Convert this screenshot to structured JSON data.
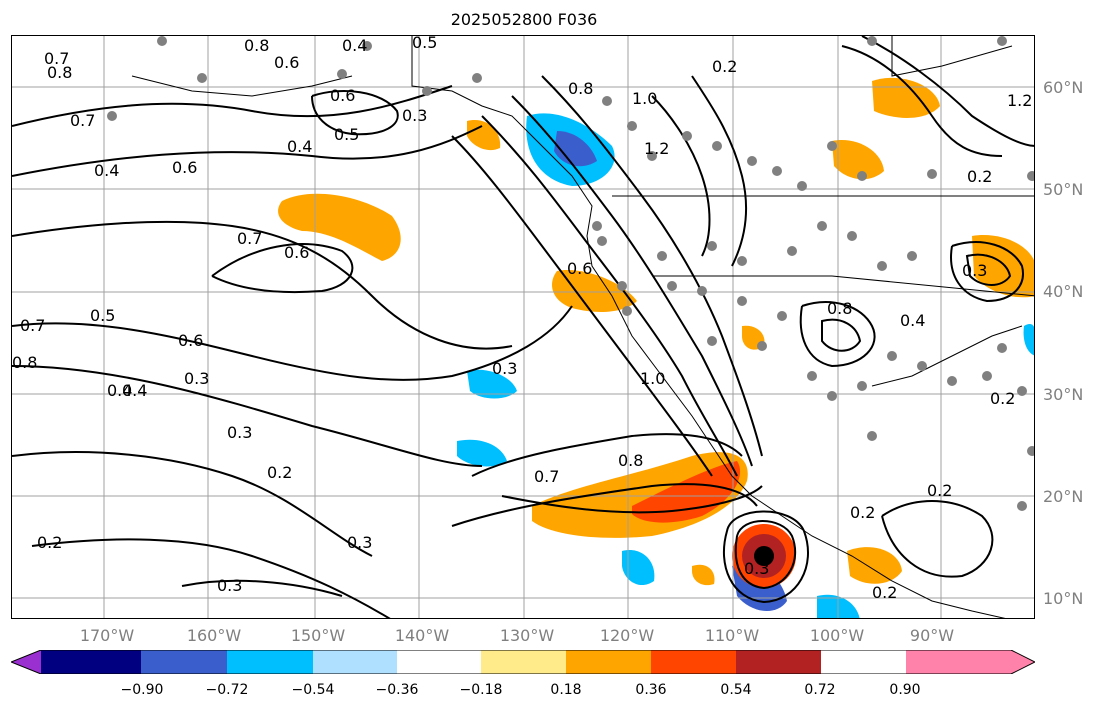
{
  "title": "2025052800 F036",
  "lat_labels": [
    "60°N",
    "50°N",
    "40°N",
    "30°N",
    "20°N",
    "10°N"
  ],
  "lon_labels": [
    "170°W",
    "160°W",
    "150°W",
    "140°W",
    "130°W",
    "120°W",
    "110°W",
    "100°W",
    "90°W"
  ],
  "colorbar": {
    "ticks": [
      "−0.90",
      "−0.72",
      "−0.54",
      "−0.36",
      "−0.18",
      "0.18",
      "0.36",
      "0.54",
      "0.72",
      "0.90"
    ],
    "colors": [
      "#9b30d0",
      "#000080",
      "#3a5fcd",
      "#00bfff",
      "#b0e0ff",
      "#ffffff",
      "#ffeb8a",
      "#ffa500",
      "#ff4500",
      "#b22222",
      "#ff82ab"
    ]
  },
  "contour_labels": [
    "0.7",
    "0.8",
    "0.8",
    "0.4",
    "0.6",
    "0.6",
    "0.5",
    "0.4",
    "0.5",
    "0.7",
    "0.6",
    "0.4",
    "0.3",
    "0.4",
    "0.7",
    "0.6",
    "0.5",
    "0.7",
    "0.6",
    "0.8",
    "0.4",
    "0.3",
    "0.3",
    "0.2",
    "0.2",
    "0.3",
    "0.3",
    "0.2",
    "0.7",
    "0.8",
    "1.0",
    "0.3",
    "0.6",
    "1.0",
    "1.2",
    "0.8",
    "0.2",
    "1.2",
    "0.3",
    "0.2",
    "0.8",
    "0.4",
    "0.2",
    "0.3",
    "0.2",
    "0.2"
  ]
}
